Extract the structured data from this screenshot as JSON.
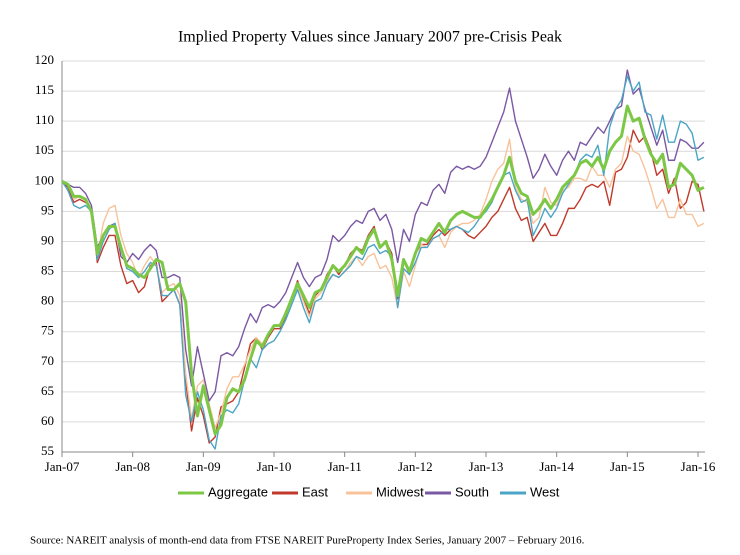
{
  "chart_data": {
    "type": "line",
    "title": "Implied Property Values since January 2007 pre-Crisis Peak",
    "source": "Source: NAREIT analysis of month-end data from FTSE NAREIT PureProperty Index Series, January 2007 – February 2016.",
    "categories": [
      "Jan-07",
      null,
      null,
      null,
      null,
      null,
      null,
      null,
      null,
      null,
      null,
      null,
      "Jan-08",
      null,
      null,
      null,
      null,
      null,
      null,
      null,
      null,
      null,
      null,
      null,
      "Jan-09",
      null,
      null,
      null,
      null,
      null,
      null,
      null,
      null,
      null,
      null,
      null,
      "Jan-10",
      null,
      null,
      null,
      null,
      null,
      null,
      null,
      null,
      null,
      null,
      null,
      "Jan-11",
      null,
      null,
      null,
      null,
      null,
      null,
      null,
      null,
      null,
      null,
      null,
      "Jan-12",
      null,
      null,
      null,
      null,
      null,
      null,
      null,
      null,
      null,
      null,
      null,
      "Jan-13",
      null,
      null,
      null,
      null,
      null,
      null,
      null,
      null,
      null,
      null,
      null,
      "Jan-14",
      null,
      null,
      null,
      null,
      null,
      null,
      null,
      null,
      null,
      null,
      null,
      "Jan-15",
      null,
      null,
      null,
      null,
      null,
      null,
      null,
      null,
      null,
      null,
      null,
      "Jan-16",
      null
    ],
    "series": [
      {
        "name": "Aggregate",
        "color": "#7cc846",
        "values": [
          100,
          99.5,
          97.5,
          97.5,
          97,
          95,
          88,
          91,
          92.5,
          92.5,
          89,
          86,
          85.5,
          84.5,
          84,
          85.5,
          87,
          86.5,
          82,
          82,
          83,
          80,
          68,
          61,
          66,
          62,
          58,
          59.5,
          64,
          65.5,
          65,
          67,
          70.5,
          73.5,
          72.5,
          74.5,
          76,
          76,
          78,
          80.5,
          83,
          81,
          79,
          81.5,
          82,
          84,
          86,
          85,
          86,
          87.5,
          89,
          88,
          90.5,
          92,
          89,
          90,
          87,
          81,
          87,
          85,
          88,
          90.5,
          90,
          91.5,
          93,
          91.5,
          93.5,
          94.5,
          95,
          94.5,
          94,
          94,
          95.5,
          97,
          99,
          101,
          104,
          100,
          98,
          97.5,
          94.5,
          95.5,
          97,
          95.5,
          97,
          99,
          100,
          101,
          103,
          103.5,
          102.5,
          104,
          102,
          105,
          106.5,
          107.5,
          112.5,
          110,
          110.5,
          107,
          104.5,
          103,
          104.5,
          99,
          99.5,
          103,
          102,
          101,
          98.5,
          99
        ]
      },
      {
        "name": "East",
        "color": "#c0392b",
        "values": [
          100,
          99,
          96.5,
          97,
          96.5,
          95.5,
          86.5,
          89,
          91,
          91,
          86,
          83,
          83.5,
          81.5,
          82.5,
          86,
          86.5,
          80,
          81,
          82,
          79.5,
          67,
          58.5,
          64,
          61,
          56.5,
          57.5,
          62.5,
          63,
          63.5,
          65,
          69,
          73,
          74,
          72,
          74,
          75.5,
          75.5,
          77.5,
          80.5,
          83.5,
          80.5,
          78,
          81,
          82,
          84.5,
          86,
          84.5,
          86,
          88,
          89,
          88.5,
          91,
          92.5,
          89,
          90,
          88,
          80.5,
          87,
          84.5,
          88,
          89.5,
          89.5,
          91,
          92,
          91,
          92,
          92.5,
          92,
          91,
          90.5,
          91.5,
          92.5,
          94,
          95,
          97,
          99,
          95.5,
          93.5,
          94,
          90,
          91.5,
          93,
          91,
          91,
          93,
          95.5,
          95.5,
          97,
          99,
          99.5,
          99,
          100,
          96,
          101.5,
          102,
          104,
          108.5,
          106.5,
          107.5,
          105,
          101,
          102,
          98,
          100.5,
          95.5,
          96.5,
          100,
          99.5,
          95
        ]
      },
      {
        "name": "Midwest",
        "color": "#f8c39b",
        "values": [
          100,
          99.5,
          97,
          97.5,
          97,
          95.5,
          87.5,
          93,
          95.5,
          96,
          91,
          88,
          86.5,
          84,
          86,
          87.5,
          86,
          81.5,
          82.5,
          83,
          81,
          68,
          60.5,
          66,
          67,
          63,
          59,
          61.5,
          65.5,
          67.5,
          67.5,
          69.5,
          72,
          74,
          73,
          74.5,
          76,
          76,
          78.5,
          80.5,
          82.5,
          80,
          77.5,
          80.5,
          81.5,
          83.5,
          84.5,
          84,
          85,
          86.5,
          87.5,
          86,
          87.5,
          88,
          85.5,
          86,
          84,
          79,
          85,
          82.5,
          86,
          89.5,
          89,
          90.5,
          91,
          89,
          91.5,
          92.5,
          93,
          93,
          93.5,
          94.5,
          97,
          100,
          102,
          103,
          107,
          99,
          97,
          96.5,
          93,
          94,
          99,
          96.5,
          96,
          98.5,
          99,
          100.5,
          100.5,
          100,
          102.5,
          101,
          101,
          99,
          102,
          103,
          107.5,
          105,
          104.5,
          102,
          99,
          95.5,
          97,
          94,
          94,
          97,
          94.5,
          94.5,
          92.5,
          93
        ]
      },
      {
        "name": "South",
        "color": "#7b58a3",
        "values": [
          100,
          99.5,
          99,
          99,
          98,
          96,
          89,
          91,
          92.5,
          93,
          87.5,
          86.5,
          88,
          87,
          88.5,
          89.5,
          88.5,
          84,
          84,
          84.5,
          84,
          72,
          66,
          72.5,
          68,
          63.5,
          65,
          71,
          71.5,
          71,
          72.5,
          75.5,
          78,
          76.5,
          79,
          79.5,
          79,
          80,
          81.5,
          84,
          86.5,
          84,
          82.5,
          84,
          84.5,
          87,
          91,
          90,
          91,
          92.5,
          93.5,
          93,
          95,
          95.5,
          93.5,
          94.5,
          92,
          86.5,
          92,
          90,
          94.5,
          96.5,
          96,
          98.5,
          99.5,
          98,
          101.5,
          102.5,
          102,
          102.5,
          102,
          102.5,
          104,
          106.5,
          109,
          111.5,
          115.5,
          110,
          107,
          104,
          100.5,
          102,
          104.5,
          102.5,
          101,
          103.5,
          105,
          103.5,
          106.5,
          106,
          107.5,
          109,
          108,
          110,
          112,
          112.5,
          118.5,
          114.5,
          115.5,
          112,
          109,
          106,
          108.5,
          103.5,
          103.5,
          107,
          106.5,
          105.5,
          105.5,
          106.5
        ]
      },
      {
        "name": "West",
        "color": "#4ba5c6",
        "values": [
          100,
          98.5,
          96,
          95.5,
          96,
          95,
          87,
          90,
          92,
          93,
          89,
          85.5,
          85,
          84,
          85,
          86.5,
          86,
          81,
          81,
          82,
          79.5,
          64.5,
          60,
          65,
          62,
          57,
          55.5,
          61,
          62,
          61.5,
          63,
          67,
          70.5,
          69,
          72,
          73,
          73.5,
          75,
          77,
          79.5,
          82,
          79,
          76.5,
          80,
          80.5,
          83,
          84.5,
          84,
          85,
          86,
          87.5,
          87,
          89,
          89.5,
          88,
          88.5,
          87.5,
          79,
          85.5,
          84.5,
          86.5,
          89,
          89,
          90.5,
          91,
          92,
          92,
          92.5,
          92,
          91.5,
          92.5,
          94,
          95,
          96.5,
          99,
          101,
          101.5,
          98.5,
          96.5,
          97,
          91,
          93,
          95.5,
          94,
          95.5,
          98,
          99.5,
          101,
          103.5,
          104.5,
          104,
          106,
          101,
          109,
          112,
          113.5,
          117.5,
          115,
          116.5,
          111.5,
          111,
          107,
          111,
          106.5,
          106.5,
          110,
          109.5,
          108,
          103.5,
          104
        ]
      }
    ],
    "ylim": [
      55,
      120
    ],
    "yticks": [
      55,
      60,
      65,
      70,
      75,
      80,
      85,
      90,
      95,
      100,
      105,
      110,
      115,
      120
    ],
    "grid": true,
    "legend": "bottom"
  }
}
